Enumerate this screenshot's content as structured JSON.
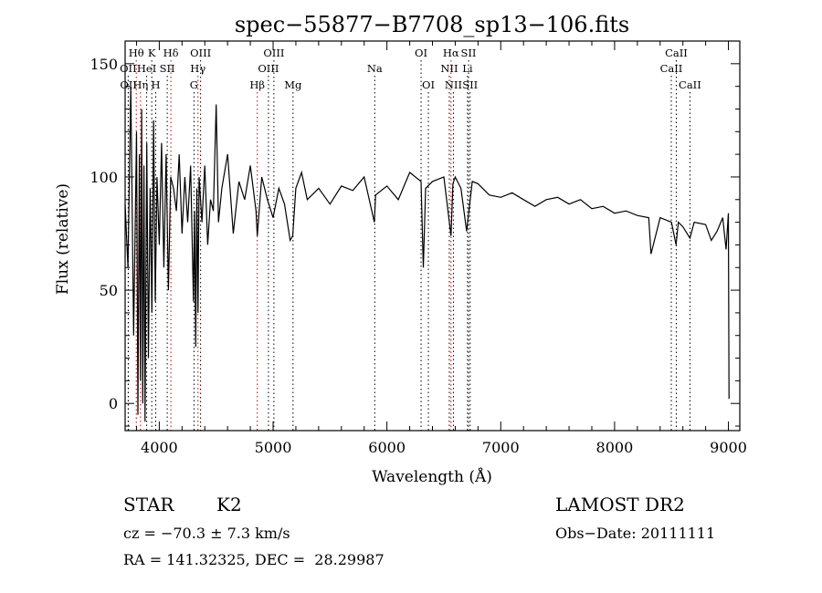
{
  "chart_data": {
    "type": "line",
    "title": "spec−55877−B7708_sp13−106.fits",
    "xlabel": "Wavelength (Å)",
    "ylabel": "Flux (relative)",
    "xlim": [
      3700,
      9100
    ],
    "ylim": [
      -12,
      160
    ],
    "x_ticks": [
      4000,
      5000,
      6000,
      7000,
      8000,
      9000
    ],
    "y_ticks": [
      0,
      50,
      100,
      150
    ],
    "series": [
      {
        "name": "flux",
        "x": [
          3700,
          3725,
          3750,
          3775,
          3800,
          3812,
          3825,
          3835,
          3845,
          3855,
          3865,
          3875,
          3890,
          3905,
          3920,
          3935,
          3950,
          3965,
          3980,
          4000,
          4020,
          4040,
          4060,
          4080,
          4100,
          4125,
          4150,
          4175,
          4200,
          4225,
          4250,
          4275,
          4300,
          4310,
          4320,
          4330,
          4340,
          4350,
          4375,
          4400,
          4425,
          4450,
          4475,
          4500,
          4520,
          4550,
          4600,
          4650,
          4700,
          4750,
          4800,
          4850,
          4861,
          4900,
          4950,
          5000,
          5050,
          5100,
          5150,
          5172,
          5200,
          5250,
          5300,
          5400,
          5500,
          5600,
          5700,
          5800,
          5890,
          5900,
          6000,
          6100,
          6200,
          6300,
          6320,
          6340,
          6400,
          6500,
          6563,
          6580,
          6600,
          6650,
          6700,
          6750,
          6800,
          6900,
          7000,
          7100,
          7200,
          7300,
          7400,
          7500,
          7600,
          7700,
          7800,
          7900,
          8000,
          8100,
          8200,
          8300,
          8320,
          8400,
          8500,
          8540,
          8560,
          8600,
          8662,
          8700,
          8800,
          8850,
          8900,
          8950,
          8980,
          9000,
          9005
        ],
        "y": [
          88,
          60,
          140,
          30,
          120,
          -5,
          110,
          10,
          130,
          0,
          105,
          -8,
          115,
          20,
          95,
          40,
          125,
          45,
          100,
          70,
          115,
          60,
          110,
          50,
          100,
          95,
          85,
          110,
          75,
          100,
          80,
          105,
          45,
          85,
          25,
          95,
          40,
          100,
          80,
          105,
          70,
          90,
          85,
          132,
          80,
          95,
          110,
          75,
          98,
          90,
          105,
          85,
          74,
          100,
          90,
          82,
          95,
          88,
          72,
          74,
          95,
          102,
          90,
          95,
          88,
          96,
          94,
          100,
          80,
          92,
          96,
          90,
          102,
          98,
          60,
          95,
          98,
          100,
          74,
          97,
          100,
          95,
          76,
          98,
          97,
          92,
          91,
          93,
          90,
          87,
          90,
          91,
          88,
          90,
          86,
          87,
          84,
          85,
          83,
          82,
          66,
          82,
          80,
          70,
          80,
          78,
          73,
          80,
          79,
          72,
          76,
          82,
          68,
          84,
          2
        ]
      }
    ],
    "spectral_lines": [
      {
        "label": "Hθ",
        "x": 3798,
        "color": "red",
        "row": 1
      },
      {
        "label": "OII",
        "x": 3727,
        "color": "black",
        "row": 2
      },
      {
        "label": "OII",
        "x": 3729,
        "color": "black",
        "row": 3
      },
      {
        "label": "Hη",
        "x": 3835,
        "color": "red",
        "row": 3
      },
      {
        "label": "K",
        "x": 3934,
        "color": "black",
        "row": 1
      },
      {
        "label": "HeI",
        "x": 3889,
        "color": "black",
        "row": 2
      },
      {
        "label": "H",
        "x": 3969,
        "color": "black",
        "row": 3
      },
      {
        "label": "SII",
        "x": 4070,
        "color": "black",
        "row": 2
      },
      {
        "label": "Hδ",
        "x": 4102,
        "color": "red",
        "row": 1
      },
      {
        "label": "OIII",
        "x": 4363,
        "color": "black",
        "row": 1
      },
      {
        "label": "Hγ",
        "x": 4340,
        "color": "red",
        "row": 2
      },
      {
        "label": "G",
        "x": 4305,
        "color": "black",
        "row": 3
      },
      {
        "label": "OIII",
        "x": 5007,
        "color": "black",
        "row": 1
      },
      {
        "label": "OIII",
        "x": 4959,
        "color": "black",
        "row": 2
      },
      {
        "label": "Hβ",
        "x": 4861,
        "color": "red",
        "row": 3
      },
      {
        "label": "Mg",
        "x": 5175,
        "color": "black",
        "row": 3
      },
      {
        "label": "Na",
        "x": 5893,
        "color": "black",
        "row": 2
      },
      {
        "label": "OI",
        "x": 6300,
        "color": "black",
        "row": 1
      },
      {
        "label": "OI",
        "x": 6364,
        "color": "black",
        "row": 3
      },
      {
        "label": "Hα",
        "x": 6563,
        "color": "red",
        "row": 1
      },
      {
        "label": "NII",
        "x": 6548,
        "color": "black",
        "row": 2
      },
      {
        "label": "NII",
        "x": 6584,
        "color": "black",
        "row": 3
      },
      {
        "label": "SII",
        "x": 6717,
        "color": "black",
        "row": 1
      },
      {
        "label": "Li",
        "x": 6708,
        "color": "black",
        "row": 2
      },
      {
        "label": "SII",
        "x": 6731,
        "color": "black",
        "row": 3
      },
      {
        "label": "CaII",
        "x": 8542,
        "color": "black",
        "row": 1
      },
      {
        "label": "CaII",
        "x": 8498,
        "color": "black",
        "row": 2
      },
      {
        "label": "CaII",
        "x": 8662,
        "color": "black",
        "row": 3
      }
    ]
  },
  "info": {
    "object_class": "STAR",
    "subclass": "K2",
    "survey": "LAMOST DR2",
    "redshift": "cz = −70.3 ± 7.3 km/s",
    "obs_date": "Obs−Date: 20111111",
    "coords": "RA = 141.32325, DEC =  28.29987"
  },
  "colors": {
    "line_marker_red": "#cc0000",
    "line_marker_black": "#000000",
    "spectrum": "#000000"
  }
}
